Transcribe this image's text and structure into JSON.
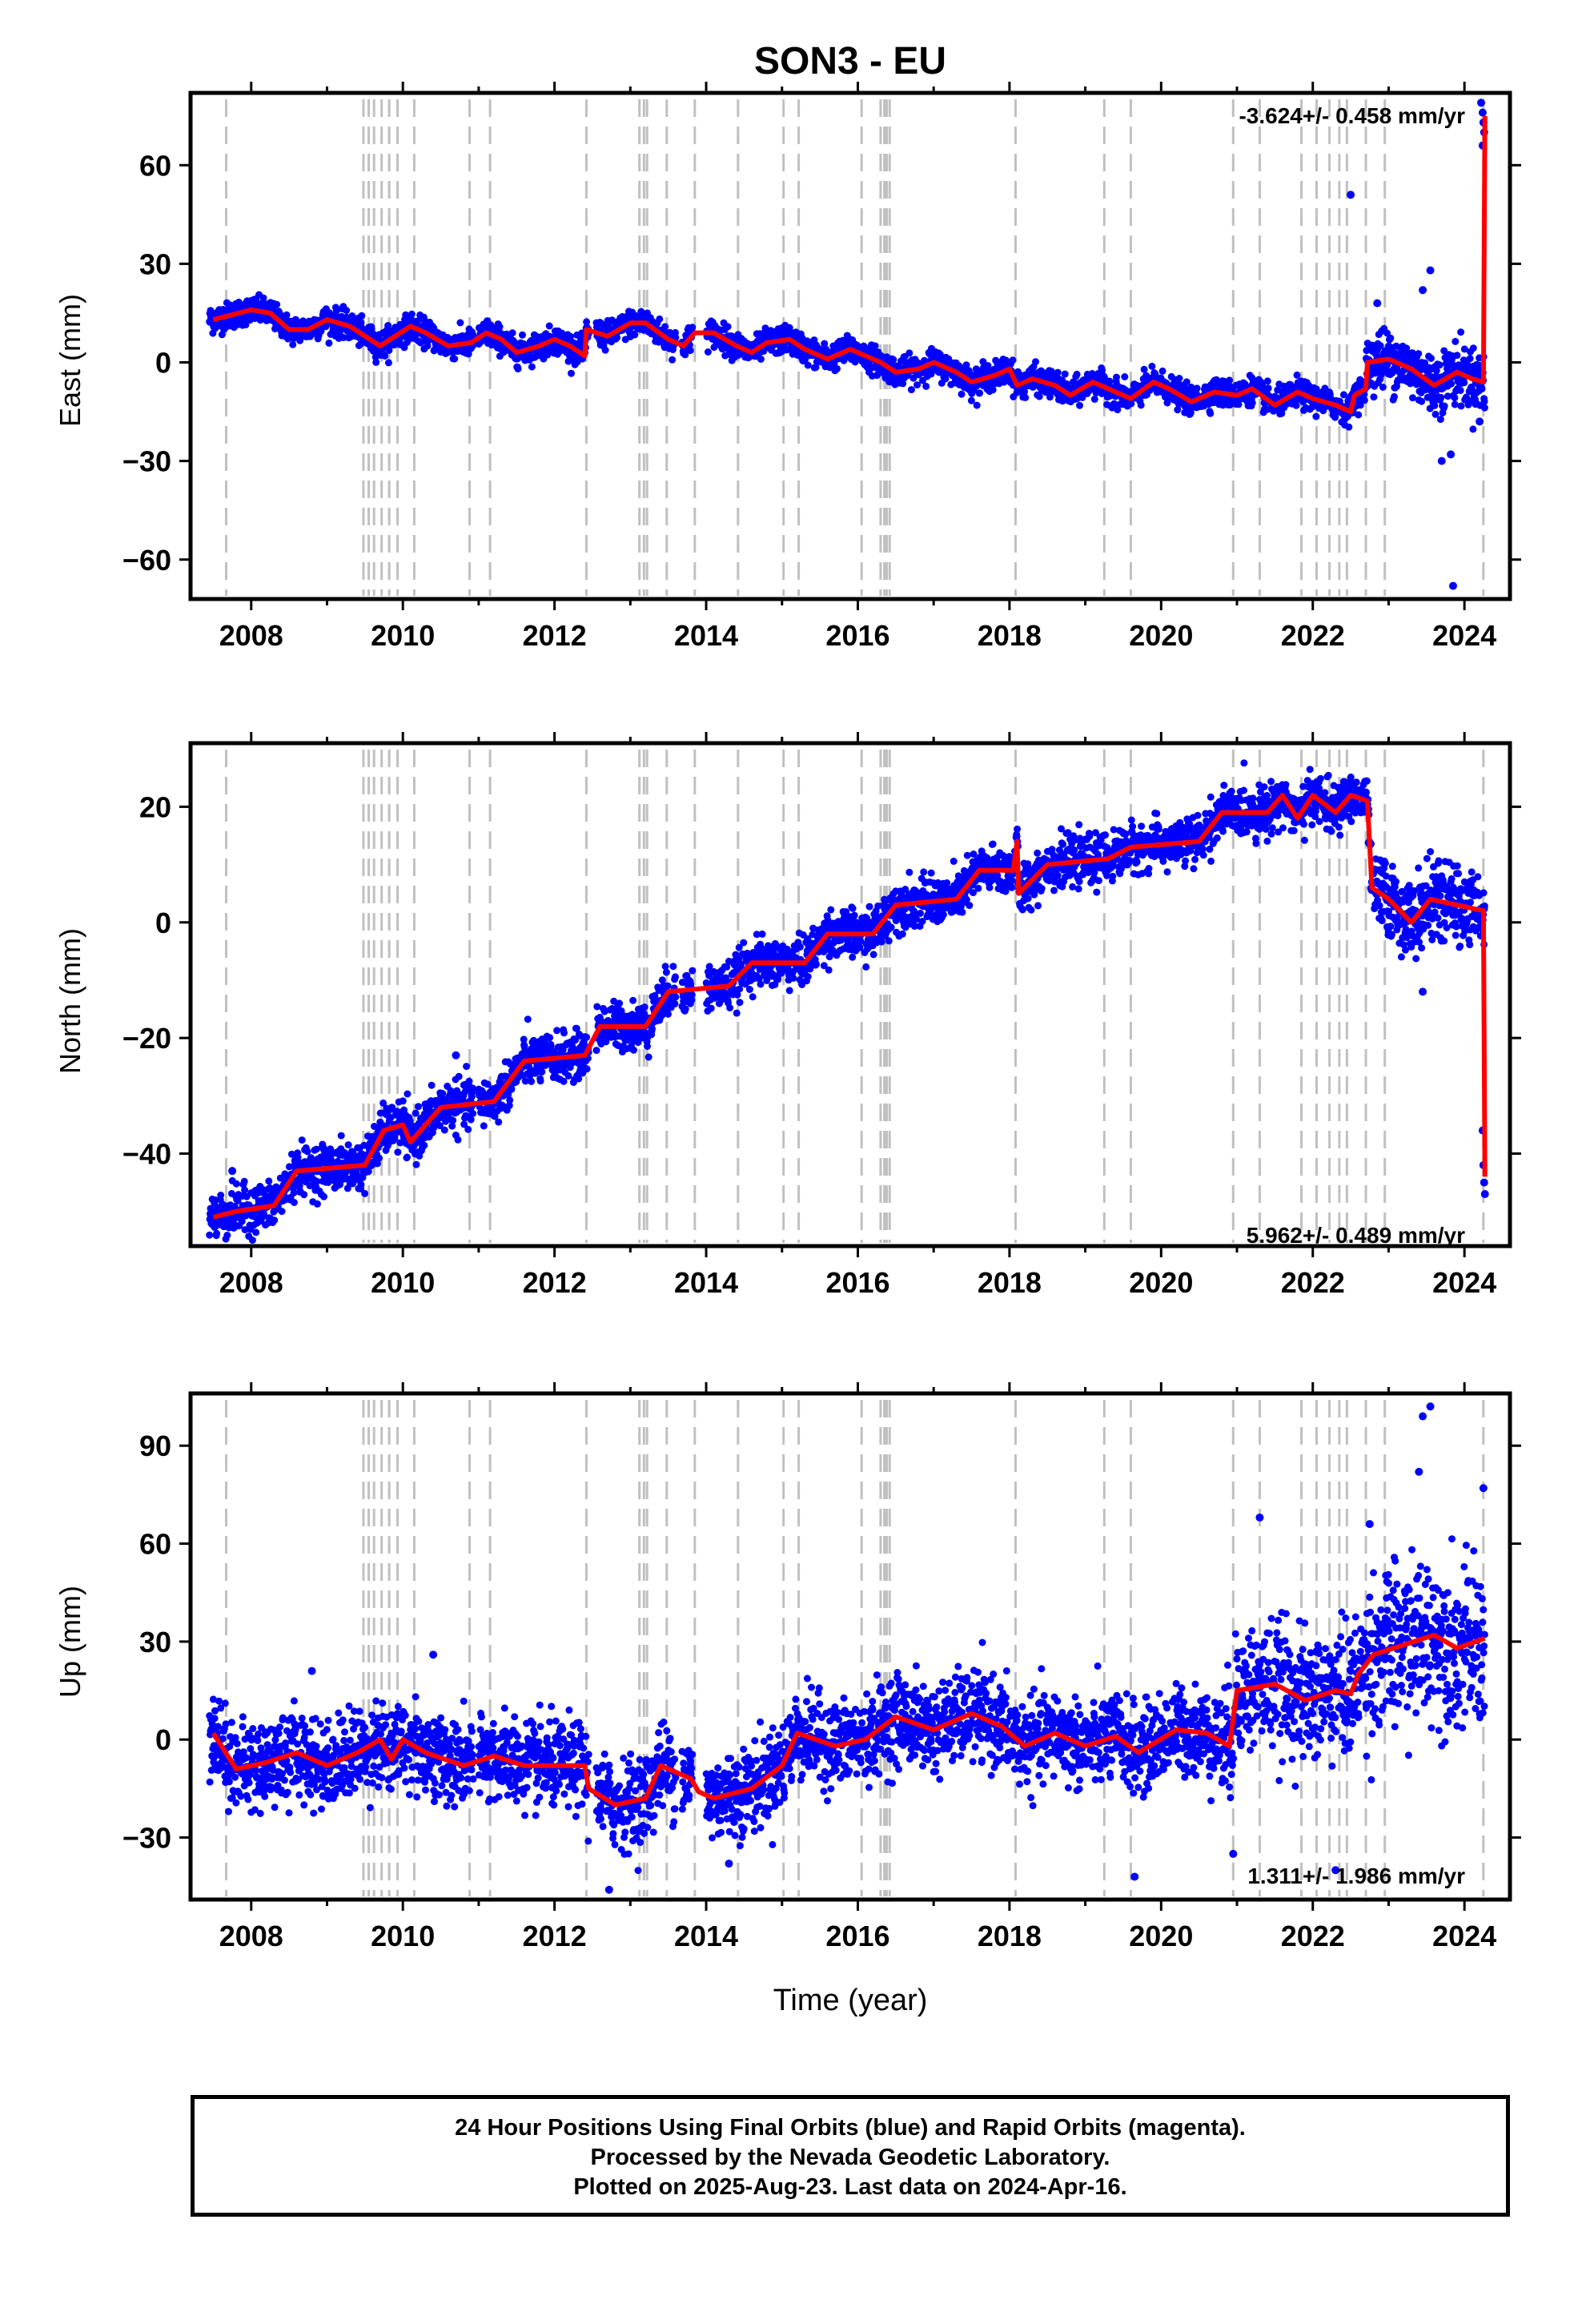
{
  "title": "SON3 - EU",
  "xlabel": "Time (year)",
  "caption": {
    "line1": "24 Hour Positions Using Final Orbits (blue) and Rapid Orbits (magenta).",
    "line2": "Processed by the Nevada Geodetic Laboratory.",
    "line3": "Plotted on 2025-Aug-23. Last data on 2024-Apr-16."
  },
  "colors": {
    "data": "#0000ff",
    "model": "#ff0000",
    "events": "#c0c0c0",
    "axes": "#000000"
  },
  "chart_data": [
    {
      "type": "scatter",
      "ylabel": "East (mm)",
      "rate_label": "-3.624+/- 0.458 mm/yr",
      "xlim": [
        2007.2,
        2024.6
      ],
      "ylim": [
        -72,
        82
      ],
      "yticks": [
        60,
        30,
        0,
        -30,
        -60
      ],
      "ytick_labels": [
        "60",
        "30",
        "0",
        "−30",
        "−60"
      ],
      "xticks": [
        2008,
        2010,
        2012,
        2014,
        2016,
        2018,
        2020,
        2022,
        2024
      ],
      "model": [
        [
          2007.5,
          13
        ],
        [
          2008.0,
          16
        ],
        [
          2008.25,
          15
        ],
        [
          2008.5,
          10
        ],
        [
          2008.75,
          10
        ],
        [
          2009.0,
          13
        ],
        [
          2009.3,
          11
        ],
        [
          2009.5,
          8
        ],
        [
          2009.7,
          5
        ],
        [
          2009.9,
          8
        ],
        [
          2010.1,
          11
        ],
        [
          2010.3,
          9
        ],
        [
          2010.6,
          5
        ],
        [
          2010.9,
          6
        ],
        [
          2011.1,
          9
        ],
        [
          2011.3,
          7
        ],
        [
          2011.5,
          3
        ],
        [
          2011.8,
          5
        ],
        [
          2012.0,
          7
        ],
        [
          2012.2,
          5
        ],
        [
          2012.4,
          2
        ],
        [
          2012.42,
          10
        ],
        [
          2012.7,
          8
        ],
        [
          2013.0,
          12
        ],
        [
          2013.2,
          12
        ],
        [
          2013.5,
          7
        ],
        [
          2013.7,
          5
        ],
        [
          2013.85,
          9
        ],
        [
          2014.1,
          9
        ],
        [
          2014.4,
          5
        ],
        [
          2014.6,
          3
        ],
        [
          2014.8,
          6
        ],
        [
          2015.1,
          7
        ],
        [
          2015.3,
          4
        ],
        [
          2015.6,
          1
        ],
        [
          2015.9,
          4
        ],
        [
          2016.1,
          2
        ],
        [
          2016.3,
          0
        ],
        [
          2016.5,
          -3
        ],
        [
          2016.8,
          -2
        ],
        [
          2017.0,
          0
        ],
        [
          2017.3,
          -3
        ],
        [
          2017.5,
          -6
        ],
        [
          2017.8,
          -4
        ],
        [
          2018.0,
          -2
        ],
        [
          2018.1,
          -7
        ],
        [
          2018.3,
          -5
        ],
        [
          2018.6,
          -7
        ],
        [
          2018.8,
          -10
        ],
        [
          2019.1,
          -6
        ],
        [
          2019.3,
          -8
        ],
        [
          2019.6,
          -11
        ],
        [
          2019.9,
          -6
        ],
        [
          2020.1,
          -8
        ],
        [
          2020.4,
          -12
        ],
        [
          2020.7,
          -9
        ],
        [
          2021.0,
          -10
        ],
        [
          2021.2,
          -8
        ],
        [
          2021.5,
          -13
        ],
        [
          2021.8,
          -9
        ],
        [
          2022.0,
          -11
        ],
        [
          2022.3,
          -13
        ],
        [
          2022.5,
          -15
        ],
        [
          2022.55,
          -10
        ],
        [
          2022.7,
          -8
        ],
        [
          2022.72,
          0
        ],
        [
          2023.0,
          1
        ],
        [
          2023.3,
          -2
        ],
        [
          2023.6,
          -7
        ],
        [
          2023.9,
          -3
        ],
        [
          2024.1,
          -5
        ],
        [
          2024.25,
          -6
        ],
        [
          2024.27,
          75
        ]
      ],
      "outliers": [
        [
          2022.5,
          51
        ],
        [
          2023.55,
          28
        ],
        [
          2023.45,
          22
        ],
        [
          2023.7,
          -30
        ],
        [
          2023.82,
          -28
        ],
        [
          2023.85,
          -68
        ],
        [
          2024.22,
          79
        ],
        [
          2024.24,
          76
        ],
        [
          2024.25,
          73
        ],
        [
          2024.26,
          70
        ],
        [
          2024.24,
          66
        ],
        [
          2024.2,
          -18
        ],
        [
          2022.85,
          18
        ]
      ]
    },
    {
      "type": "scatter",
      "ylabel": "North (mm)",
      "rate_label": "5.962+/- 0.489 mm/yr",
      "xlim": [
        2007.2,
        2024.6
      ],
      "ylim": [
        -56,
        31
      ],
      "yticks": [
        20,
        0,
        -20,
        -40
      ],
      "ytick_labels": [
        "20",
        "0",
        "−20",
        "−40"
      ],
      "xticks": [
        2008,
        2010,
        2012,
        2014,
        2016,
        2018,
        2020,
        2022,
        2024
      ],
      "model": [
        [
          2007.5,
          -51
        ],
        [
          2007.8,
          -50
        ],
        [
          2008.3,
          -49
        ],
        [
          2008.6,
          -43
        ],
        [
          2009.5,
          -42
        ],
        [
          2009.75,
          -36
        ],
        [
          2010.0,
          -35
        ],
        [
          2010.1,
          -38
        ],
        [
          2010.5,
          -32
        ],
        [
          2011.2,
          -31
        ],
        [
          2011.6,
          -24
        ],
        [
          2012.4,
          -23
        ],
        [
          2012.6,
          -18
        ],
        [
          2013.2,
          -18
        ],
        [
          2013.5,
          -12
        ],
        [
          2014.3,
          -11
        ],
        [
          2014.6,
          -7
        ],
        [
          2015.3,
          -7
        ],
        [
          2015.6,
          -2
        ],
        [
          2016.2,
          -2
        ],
        [
          2016.5,
          3
        ],
        [
          2017.3,
          4
        ],
        [
          2017.6,
          9
        ],
        [
          2018.05,
          9
        ],
        [
          2018.1,
          14
        ],
        [
          2018.12,
          5
        ],
        [
          2018.5,
          10
        ],
        [
          2019.3,
          11
        ],
        [
          2019.6,
          13
        ],
        [
          2020.5,
          14
        ],
        [
          2020.8,
          19
        ],
        [
          2021.4,
          19
        ],
        [
          2021.6,
          22
        ],
        [
          2021.8,
          18
        ],
        [
          2022.0,
          22
        ],
        [
          2022.3,
          19
        ],
        [
          2022.5,
          22
        ],
        [
          2022.72,
          21
        ],
        [
          2022.78,
          6
        ],
        [
          2023.0,
          4
        ],
        [
          2023.3,
          0
        ],
        [
          2023.55,
          4
        ],
        [
          2023.9,
          3
        ],
        [
          2024.25,
          2
        ],
        [
          2024.27,
          -44
        ]
      ],
      "outliers": [
        [
          2024.25,
          -42
        ],
        [
          2024.26,
          -45
        ],
        [
          2024.27,
          -47
        ],
        [
          2024.24,
          -36
        ],
        [
          2023.45,
          -12
        ],
        [
          2010.7,
          -23
        ],
        [
          2007.75,
          -43
        ]
      ]
    },
    {
      "type": "scatter",
      "ylabel": "Up (mm)",
      "rate_label": "1.311+/- 1.986 mm/yr",
      "xlim": [
        2007.2,
        2024.6
      ],
      "ylim": [
        -49,
        106
      ],
      "yticks": [
        90,
        60,
        30,
        0,
        -30
      ],
      "ytick_labels": [
        "90",
        "60",
        "30",
        "0",
        "−30"
      ],
      "xticks": [
        2008,
        2010,
        2012,
        2014,
        2016,
        2018,
        2020,
        2022,
        2024
      ],
      "model": [
        [
          2007.5,
          2
        ],
        [
          2007.8,
          -9
        ],
        [
          2008.2,
          -7
        ],
        [
          2008.6,
          -4
        ],
        [
          2009.0,
          -8
        ],
        [
          2009.4,
          -4
        ],
        [
          2009.7,
          0
        ],
        [
          2009.85,
          -6
        ],
        [
          2010.0,
          0
        ],
        [
          2010.3,
          -4
        ],
        [
          2010.8,
          -8
        ],
        [
          2011.2,
          -5
        ],
        [
          2011.6,
          -8
        ],
        [
          2012.4,
          -8
        ],
        [
          2012.45,
          -15
        ],
        [
          2012.8,
          -20
        ],
        [
          2013.2,
          -18
        ],
        [
          2013.4,
          -8
        ],
        [
          2013.8,
          -12
        ],
        [
          2013.9,
          -16
        ],
        [
          2014.1,
          -18
        ],
        [
          2014.6,
          -15
        ],
        [
          2015.0,
          -8
        ],
        [
          2015.2,
          2
        ],
        [
          2015.7,
          -2
        ],
        [
          2016.1,
          0
        ],
        [
          2016.5,
          7
        ],
        [
          2017.0,
          3
        ],
        [
          2017.5,
          8
        ],
        [
          2017.9,
          4
        ],
        [
          2018.2,
          -2
        ],
        [
          2018.6,
          2
        ],
        [
          2019.0,
          -2
        ],
        [
          2019.4,
          1
        ],
        [
          2019.7,
          -4
        ],
        [
          2020.2,
          3
        ],
        [
          2020.6,
          2
        ],
        [
          2020.9,
          -2
        ],
        [
          2021.0,
          15
        ],
        [
          2021.5,
          17
        ],
        [
          2021.9,
          12
        ],
        [
          2022.3,
          15
        ],
        [
          2022.5,
          14
        ],
        [
          2022.6,
          20
        ],
        [
          2022.8,
          26
        ],
        [
          2023.2,
          29
        ],
        [
          2023.6,
          32
        ],
        [
          2023.9,
          28
        ],
        [
          2024.27,
          31
        ]
      ],
      "outliers": [
        [
          2023.55,
          102
        ],
        [
          2023.45,
          99
        ],
        [
          2023.4,
          82
        ],
        [
          2024.25,
          77
        ],
        [
          2021.3,
          68
        ],
        [
          2022.75,
          66
        ],
        [
          2012.72,
          -46
        ],
        [
          2014.3,
          -38
        ],
        [
          2019.65,
          -42
        ],
        [
          2020.95,
          -35
        ],
        [
          2022.3,
          -40
        ],
        [
          2010.4,
          26
        ],
        [
          2008.8,
          21
        ]
      ]
    }
  ],
  "event_lines": [
    2007.67,
    2009.48,
    2009.55,
    2009.62,
    2009.72,
    2009.82,
    2009.93,
    2010.15,
    2010.88,
    2011.15,
    2012.42,
    2013.12,
    2013.18,
    2013.22,
    2013.48,
    2013.85,
    2014.42,
    2015.02,
    2015.22,
    2016.05,
    2016.3,
    2016.35,
    2016.38,
    2016.42,
    2018.08,
    2019.25,
    2019.6,
    2020.95,
    2021.3,
    2021.85,
    2022.05,
    2022.22,
    2022.35,
    2022.45,
    2022.7,
    2022.95,
    2024.25
  ]
}
